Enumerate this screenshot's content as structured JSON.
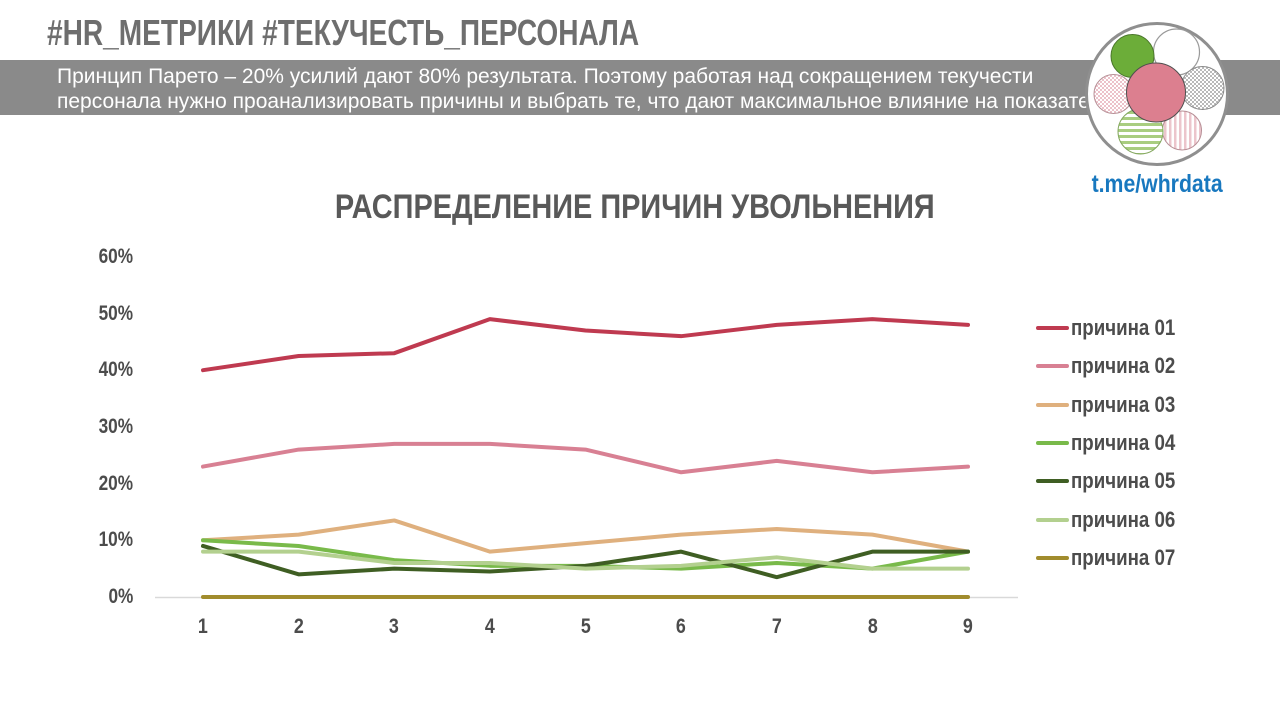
{
  "header": {
    "title": "#HR_МЕТРИКИ #ТЕКУЧЕСТЬ_ПЕРСОНАЛА"
  },
  "banner": {
    "line1": "Принцип Парето – 20% усилий дают 80% результата. Поэтому работая над сокращением текучести",
    "line2": "персонала нужно проанализировать причины и выбрать те, что дают максимальное влияние на показатель.",
    "bg_color": "#8a8a8a",
    "text_color": "#ffffff"
  },
  "logo": {
    "name": "whrdata-flower-logo",
    "colors": {
      "center_pink": "#dc7f8f",
      "solid_green": "#6cad39",
      "pale_pink": "#ecc2ca",
      "pale_green": "#a9cd80",
      "gray": "#b9b9b9"
    }
  },
  "link": {
    "label": "t.me/whrdata",
    "color": "#1878bf"
  },
  "chart_data": {
    "type": "line",
    "title": "РАСПРЕДЕЛЕНИЕ ПРИЧИН УВОЛЬНЕНИЯ",
    "categories": [
      "1",
      "2",
      "3",
      "4",
      "5",
      "6",
      "7",
      "8",
      "9"
    ],
    "series": [
      {
        "name": "причина 01",
        "color": "#bf3a50",
        "values": [
          40,
          42.5,
          43,
          49,
          47,
          46,
          48,
          49,
          48
        ]
      },
      {
        "name": "причина 02",
        "color": "#d88093",
        "values": [
          23,
          26,
          27,
          27,
          26,
          22,
          24,
          22,
          23
        ]
      },
      {
        "name": "причина 03",
        "color": "#dfb07e",
        "values": [
          10,
          11,
          13.5,
          8,
          9.5,
          11,
          12,
          11,
          8
        ]
      },
      {
        "name": "причина 04",
        "color": "#79ba4a",
        "values": [
          10,
          9,
          6.5,
          5.5,
          5.5,
          5,
          6,
          5,
          8
        ]
      },
      {
        "name": "причина 05",
        "color": "#3f5e23",
        "values": [
          9,
          4,
          5,
          4.5,
          5.5,
          8,
          3.5,
          8,
          8
        ]
      },
      {
        "name": "причина 06",
        "color": "#b3d08f",
        "values": [
          8,
          8,
          6,
          6,
          5,
          5.5,
          7,
          5,
          5
        ]
      },
      {
        "name": "причина 07",
        "color": "#a18c2d",
        "values": [
          0,
          0,
          0,
          0,
          0,
          0,
          0,
          0,
          0
        ]
      }
    ],
    "y_ticks": [
      "0%",
      "10%",
      "20%",
      "30%",
      "40%",
      "50%",
      "60%"
    ],
    "ylim": [
      0,
      60
    ],
    "xlabel": "",
    "ylabel": "",
    "grid": false,
    "legend_position": "right",
    "axis_color": "#d9d9d9",
    "label_color": "#4c4c4c"
  }
}
